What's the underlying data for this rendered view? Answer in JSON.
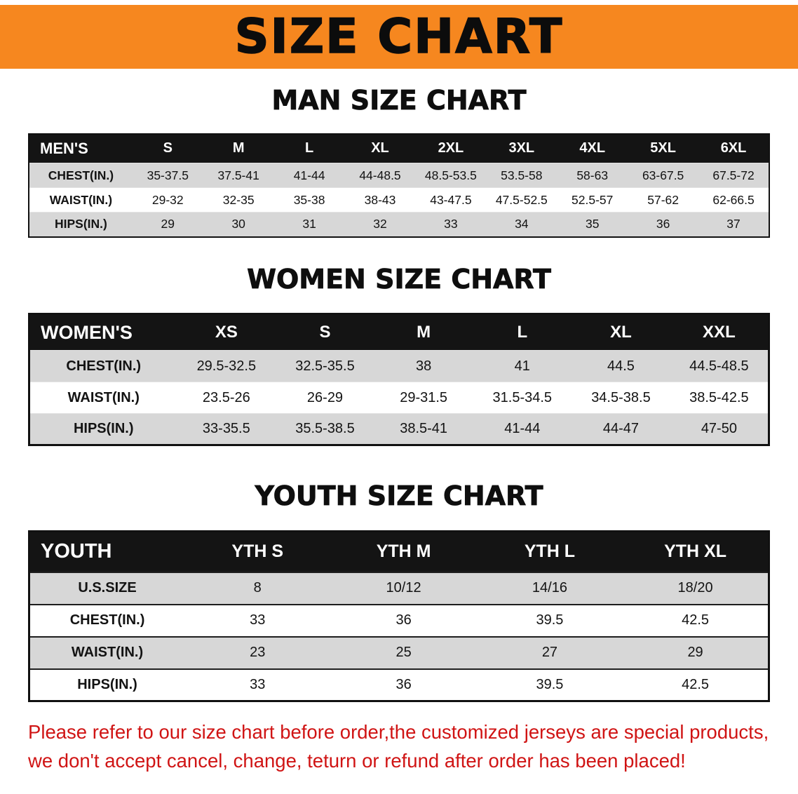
{
  "colors": {
    "banner_bg": "#f6871f",
    "header_bg": "#141414",
    "row_gray": "#d7d7d7",
    "row_white": "#ffffff",
    "disclaimer_red": "#d01414"
  },
  "banner": {
    "title": "SIZE CHART"
  },
  "sections": [
    {
      "id": "man",
      "heading": "MAN SIZE CHART",
      "table": {
        "header": [
          "MEN'S",
          "S",
          "M",
          "L",
          "XL",
          "2XL",
          "3XL",
          "4XL",
          "5XL",
          "6XL"
        ],
        "rows": [
          {
            "label": "CHEST(IN.)",
            "values": [
              "35-37.5",
              "37.5-41",
              "41-44",
              "44-48.5",
              "48.5-53.5",
              "53.5-58",
              "58-63",
              "63-67.5",
              "67.5-72"
            ]
          },
          {
            "label": "WAIST(IN.)",
            "values": [
              "29-32",
              "32-35",
              "35-38",
              "38-43",
              "43-47.5",
              "47.5-52.5",
              "52.5-57",
              "57-62",
              "62-66.5"
            ]
          },
          {
            "label": "HIPS(IN.)",
            "values": [
              "29",
              "30",
              "31",
              "32",
              "33",
              "34",
              "35",
              "36",
              "37"
            ]
          }
        ]
      }
    },
    {
      "id": "women",
      "heading": "WOMEN SIZE CHART",
      "table": {
        "header": [
          "WOMEN'S",
          "XS",
          "S",
          "M",
          "L",
          "XL",
          "XXL"
        ],
        "rows": [
          {
            "label": "CHEST(IN.)",
            "values": [
              "29.5-32.5",
              "32.5-35.5",
              "38",
              "41",
              "44.5",
              "44.5-48.5"
            ]
          },
          {
            "label": "WAIST(IN.)",
            "values": [
              "23.5-26",
              "26-29",
              "29-31.5",
              "31.5-34.5",
              "34.5-38.5",
              "38.5-42.5"
            ]
          },
          {
            "label": "HIPS(IN.)",
            "values": [
              "33-35.5",
              "35.5-38.5",
              "38.5-41",
              "41-44",
              "44-47",
              "47-50"
            ]
          }
        ]
      }
    },
    {
      "id": "youth",
      "heading": "YOUTH SIZE CHART",
      "table": {
        "header": [
          "YOUTH",
          "YTH S",
          "YTH M",
          "YTH L",
          "YTH XL"
        ],
        "rows": [
          {
            "label": "U.S.SIZE",
            "values": [
              "8",
              "10/12",
              "14/16",
              "18/20"
            ]
          },
          {
            "label": "CHEST(IN.)",
            "values": [
              "33",
              "36",
              "39.5",
              "42.5"
            ]
          },
          {
            "label": "WAIST(IN.)",
            "values": [
              "23",
              "25",
              "27",
              "29"
            ]
          },
          {
            "label": "HIPS(IN.)",
            "values": [
              "33",
              "36",
              "39.5",
              "42.5"
            ]
          }
        ]
      }
    }
  ],
  "disclaimer": {
    "line1": "Please refer to our size chart before order,the customized jerseys are special products,",
    "line2": "we don't accept cancel, change, teturn or refund after order has been placed!"
  }
}
